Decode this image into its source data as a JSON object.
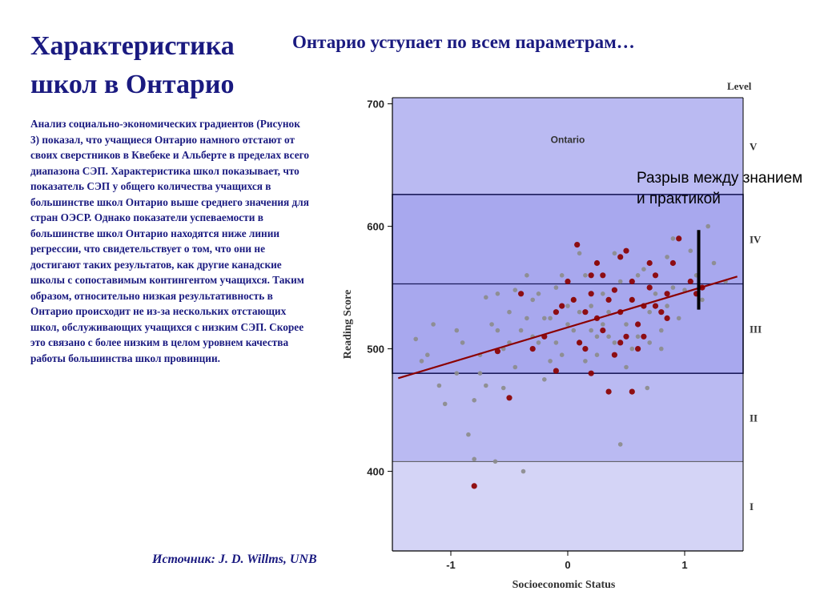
{
  "slide": {
    "title": "Характеристика школ в Онтарио",
    "subtitle": "Онтарио уступает по всем параметрам…",
    "body": "Анализ социально-экономических градиентов (Рисунок 3) показал, что учащиеся Онтарио намного отстают от своих сверстников в Квебеке и Альберте в пределах всего диапазона СЭП. Характеристика школ показывает, что показатель СЭП у общего количества учащихся в большинстве школ Онтарио выше среднего значения для стран ОЭСР. Однако показатели успеваемости в большинстве школ Онтарио находятся ниже линии регрессии, что свидетельствует о том, что они не достигают таких результатов, как другие канадские школы с сопоставимым контингентом учащихся. Таким образом, относительно низкая результативность в Онтарио происходит не из-за нескольких отстающих школ, обслуживающих учащихся с низким СЭП. Скорее это связано с более низким в целом уровнем качества работы большинства школ провинции.",
    "source": "Источник:  J. D. Willms, UNB",
    "annotation": "Разрыв между знанием и практикой"
  },
  "chart_data": {
    "type": "scatter",
    "title": "Ontario",
    "xlabel": "Socioeconomic Status",
    "ylabel": "Reading Score",
    "xlim": [
      -1.5,
      1.5
    ],
    "ylim": [
      335,
      705
    ],
    "x_ticks": [
      "-1",
      "0",
      "1"
    ],
    "y_ticks": [
      "400",
      "500",
      "600",
      "700"
    ],
    "levels_title": "Level",
    "levels": [
      {
        "label": "I",
        "from": 335,
        "to": 408,
        "color": "#d4d4f6"
      },
      {
        "label": "II",
        "from": 408,
        "to": 480,
        "color": "#babaf2"
      },
      {
        "label": "III",
        "from": 480,
        "to": 553,
        "color": "#a8a8ee"
      },
      {
        "label": "IV",
        "from": 553,
        "to": 626,
        "color": "#a8a8ee"
      },
      {
        "label": "V",
        "from": 626,
        "to": 705,
        "color": "#babaf2"
      }
    ],
    "regression": {
      "x": [
        -1.45,
        1.45
      ],
      "y": [
        476,
        559
      ],
      "color": "#8b0000"
    },
    "gap_marker": {
      "x": 1.12,
      "y_from": 532,
      "y_to": 597
    },
    "series": [
      {
        "values": [
          [
            -1.3,
            508
          ],
          [
            -1.25,
            490
          ],
          [
            -1.1,
            470
          ],
          [
            -1.05,
            455
          ],
          [
            -1.15,
            520
          ],
          [
            -0.95,
            480
          ],
          [
            -0.9,
            505
          ],
          [
            -0.85,
            430
          ],
          [
            -0.8,
            458
          ],
          [
            -0.75,
            495
          ],
          [
            -0.7,
            470
          ],
          [
            -0.65,
            520
          ],
          [
            -0.6,
            545
          ],
          [
            -0.55,
            500
          ],
          [
            -0.5,
            530
          ],
          [
            -0.45,
            485
          ],
          [
            -0.4,
            515
          ],
          [
            -0.35,
            560
          ],
          [
            -0.3,
            540
          ],
          [
            -0.25,
            505
          ],
          [
            -0.2,
            475
          ],
          [
            -0.15,
            525
          ],
          [
            -0.1,
            550
          ],
          [
            -0.05,
            495
          ],
          [
            0.0,
            520
          ],
          [
            0.05,
            540
          ],
          [
            0.1,
            505
          ],
          [
            0.15,
            560
          ],
          [
            0.2,
            515
          ],
          [
            0.25,
            495
          ],
          [
            0.3,
            545
          ],
          [
            0.35,
            530
          ],
          [
            0.4,
            505
          ],
          [
            0.45,
            555
          ],
          [
            0.5,
            520
          ],
          [
            0.55,
            540
          ],
          [
            0.6,
            510
          ],
          [
            0.65,
            565
          ],
          [
            0.7,
            530
          ],
          [
            0.75,
            545
          ],
          [
            0.8,
            515
          ],
          [
            0.85,
            575
          ],
          [
            0.9,
            550
          ],
          [
            0.95,
            525
          ],
          [
            1.05,
            580
          ],
          [
            1.1,
            560
          ],
          [
            1.15,
            540
          ],
          [
            1.25,
            570
          ],
          [
            1.35,
            555
          ],
          [
            -0.62,
            408
          ],
          [
            -0.38,
            400
          ],
          [
            -0.8,
            410
          ],
          [
            0.45,
            422
          ],
          [
            -0.95,
            515
          ],
          [
            -0.7,
            542
          ],
          [
            -0.3,
            510
          ],
          [
            0.1,
            578
          ],
          [
            0.25,
            570
          ],
          [
            -0.15,
            490
          ],
          [
            0.35,
            510
          ],
          [
            -0.5,
            505
          ],
          [
            0.0,
            535
          ],
          [
            0.6,
            560
          ],
          [
            0.2,
            535
          ],
          [
            -0.45,
            548
          ],
          [
            0.5,
            485
          ],
          [
            0.68,
            468
          ],
          [
            0.8,
            500
          ],
          [
            -0.2,
            525
          ],
          [
            0.15,
            490
          ],
          [
            0.05,
            515
          ],
          [
            -0.05,
            560
          ],
          [
            0.3,
            520
          ],
          [
            -0.35,
            525
          ],
          [
            1.2,
            600
          ],
          [
            0.9,
            590
          ],
          [
            1.0,
            548
          ],
          [
            -1.2,
            495
          ],
          [
            -0.55,
            468
          ],
          [
            -0.25,
            545
          ],
          [
            0.4,
            578
          ],
          [
            0.55,
            500
          ],
          [
            0.7,
            505
          ],
          [
            0.85,
            535
          ],
          [
            -0.1,
            505
          ],
          [
            0.1,
            530
          ],
          [
            -0.6,
            515
          ],
          [
            -0.75,
            480
          ],
          [
            0.25,
            510
          ]
        ],
        "color": "#8c8c8c"
      },
      {
        "values": [
          [
            -0.8,
            388
          ],
          [
            -0.1,
            482
          ],
          [
            0.35,
            465
          ],
          [
            0.15,
            530
          ],
          [
            0.2,
            545
          ],
          [
            0.3,
            560
          ],
          [
            0.45,
            575
          ],
          [
            0.55,
            540
          ],
          [
            0.6,
            520
          ],
          [
            0.65,
            535
          ],
          [
            0.7,
            550
          ],
          [
            0.75,
            560
          ],
          [
            0.8,
            530
          ],
          [
            0.85,
            525
          ],
          [
            0.9,
            570
          ],
          [
            0.95,
            590
          ],
          [
            0.5,
            510
          ],
          [
            0.4,
            495
          ],
          [
            0.25,
            525
          ],
          [
            0.1,
            505
          ],
          [
            0.05,
            540
          ],
          [
            -0.05,
            535
          ],
          [
            0.0,
            555
          ],
          [
            0.2,
            560
          ],
          [
            0.3,
            515
          ],
          [
            0.35,
            540
          ],
          [
            0.45,
            505
          ],
          [
            0.55,
            555
          ],
          [
            0.6,
            500
          ],
          [
            0.65,
            510
          ],
          [
            0.75,
            535
          ],
          [
            1.05,
            555
          ],
          [
            1.15,
            550
          ],
          [
            1.1,
            545
          ],
          [
            0.5,
            580
          ],
          [
            0.25,
            570
          ],
          [
            0.15,
            500
          ],
          [
            0.4,
            548
          ],
          [
            0.7,
            570
          ],
          [
            0.85,
            545
          ],
          [
            -0.2,
            510
          ],
          [
            -0.3,
            500
          ],
          [
            -0.1,
            530
          ],
          [
            0.55,
            465
          ],
          [
            0.08,
            585
          ],
          [
            0.2,
            480
          ],
          [
            0.45,
            530
          ],
          [
            -0.4,
            545
          ],
          [
            -0.5,
            460
          ],
          [
            -0.6,
            498
          ]
        ],
        "color": "#8b0000"
      }
    ]
  }
}
